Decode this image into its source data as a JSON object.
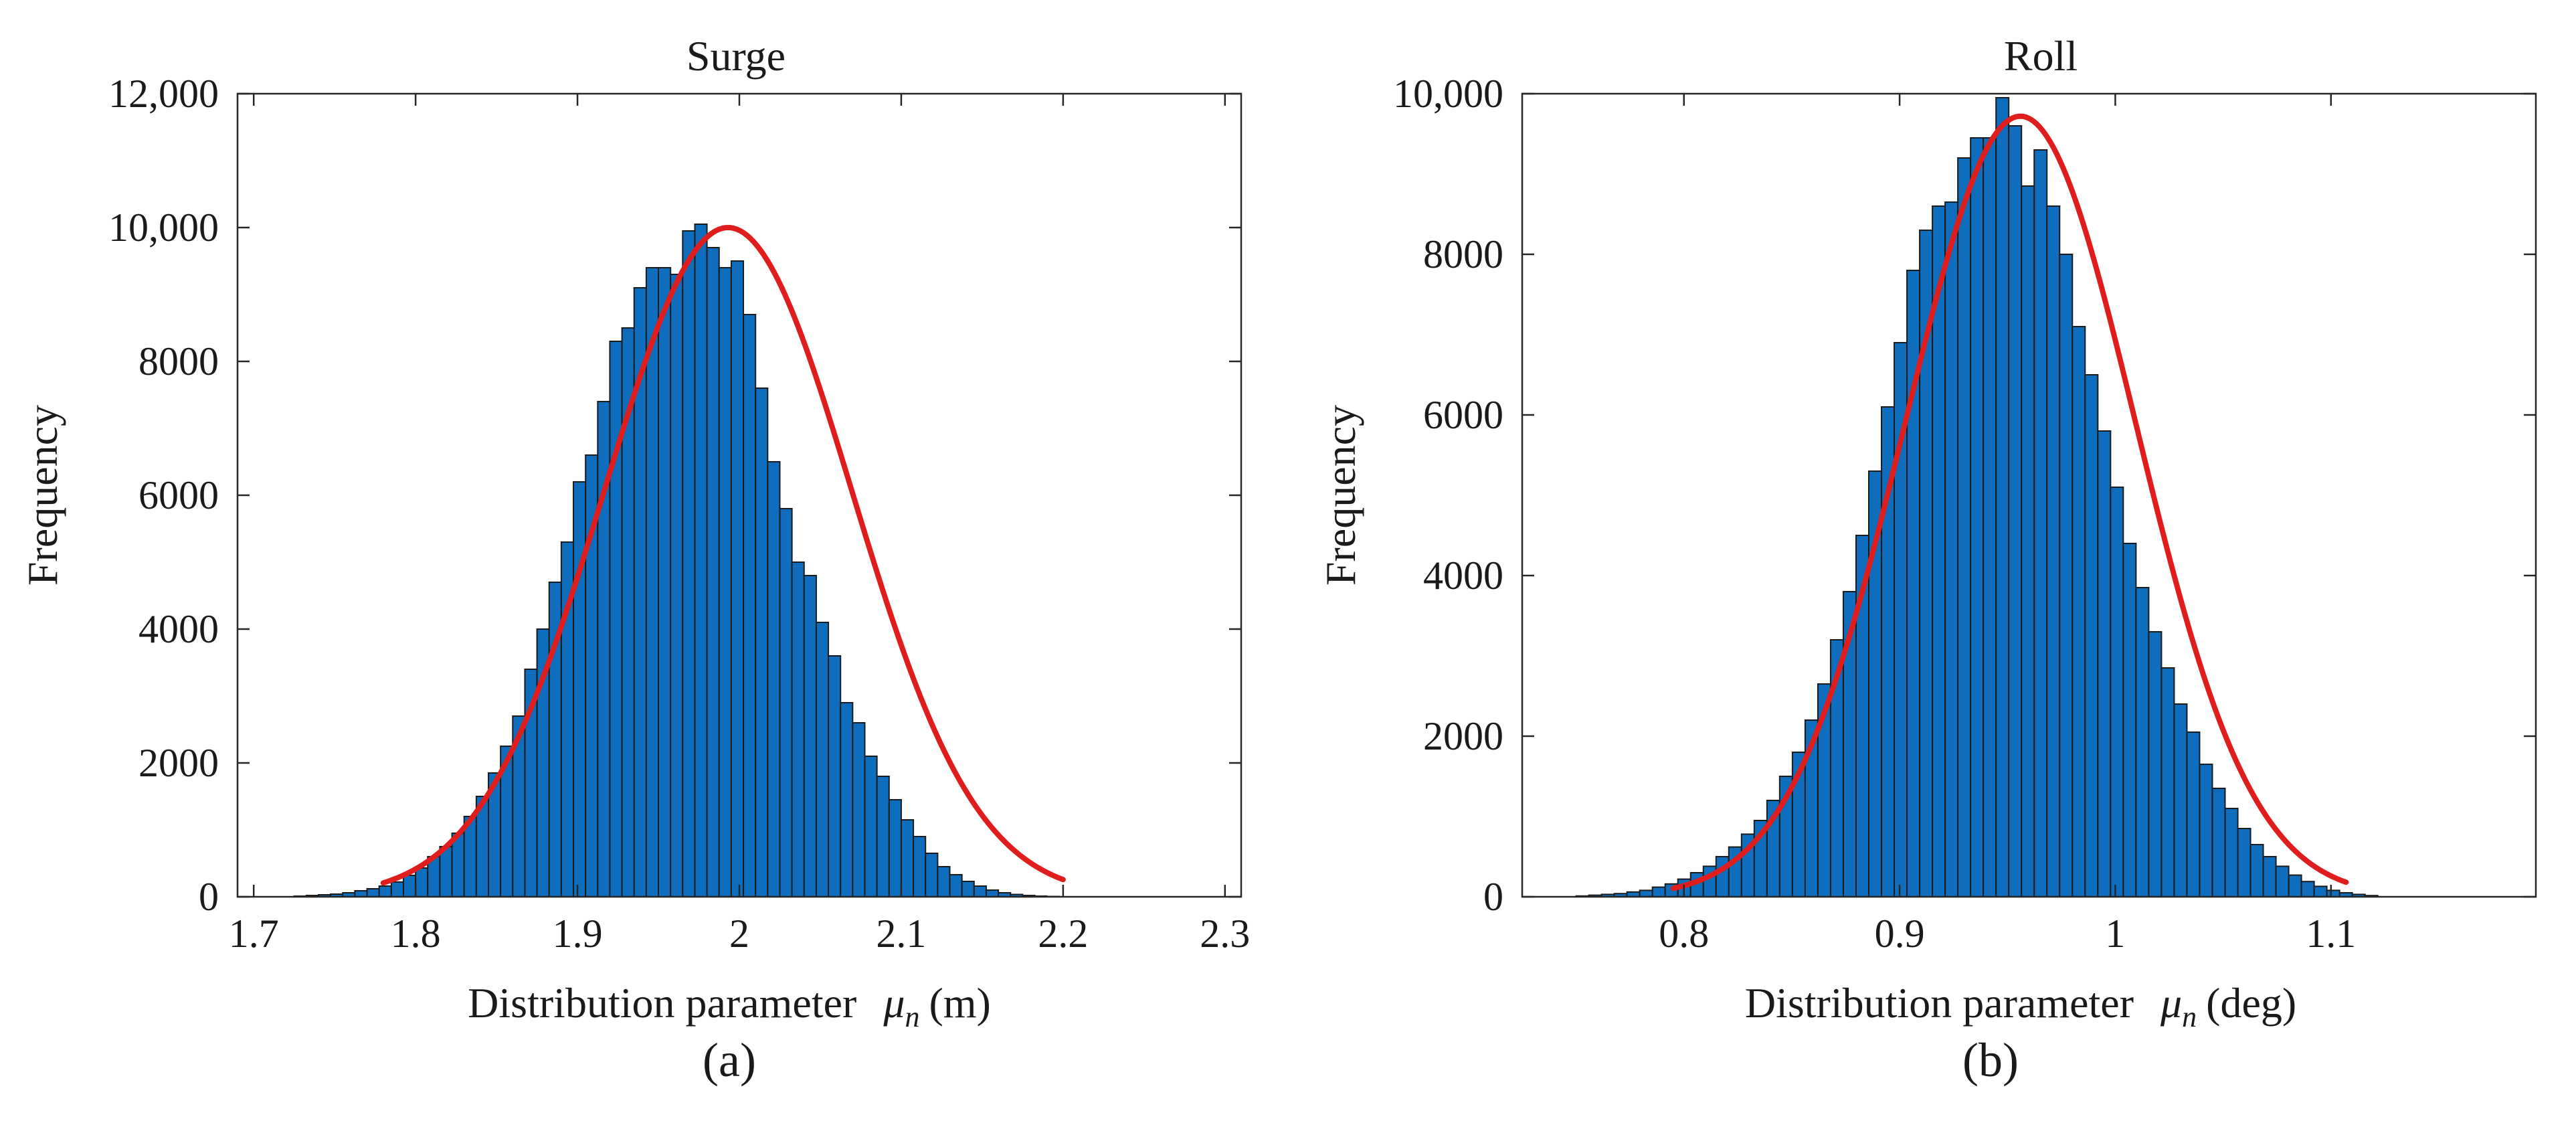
{
  "colors": {
    "bar": "#0f6dbd",
    "fit": "#e01d1d",
    "axis": "#262626"
  },
  "panels": [
    {
      "panel_label": "(a)",
      "xlabel_text": "Distribution parameter",
      "xlabel_symbol": "μ",
      "xlabel_subscript": "n",
      "xlabel_unit": "(m)"
    },
    {
      "panel_label": "(b)",
      "xlabel_text": "Distribution parameter",
      "xlabel_symbol": "μ",
      "xlabel_subscript": "n",
      "xlabel_unit": "(deg)"
    }
  ],
  "chart_data": [
    {
      "type": "bar",
      "title": "Surge",
      "xlabel": "Distribution parameter μn (m)",
      "ylabel": "Frequency",
      "xlim": [
        1.69,
        2.31
      ],
      "ylim": [
        0,
        12000
      ],
      "xticks": [
        1.7,
        1.8,
        1.9,
        2,
        2.1,
        2.2,
        2.3
      ],
      "xtick_labels": [
        "1.7",
        "1.8",
        "1.9",
        "2",
        "2.1",
        "2.2",
        "2.3"
      ],
      "yticks": [
        0,
        2000,
        4000,
        6000,
        8000,
        10000,
        12000
      ],
      "ytick_labels": [
        "0",
        "2000",
        "4000",
        "6000",
        "8000",
        "10,000",
        "12,000"
      ],
      "bin_start": 1.725,
      "bin_width": 0.0075,
      "values": [
        10,
        20,
        30,
        40,
        60,
        90,
        120,
        160,
        220,
        320,
        430,
        600,
        750,
        950,
        1200,
        1500,
        1850,
        2250,
        2700,
        3400,
        4000,
        4700,
        5300,
        6200,
        6600,
        7400,
        8300,
        8500,
        9100,
        9400,
        9400,
        9300,
        9950,
        10050,
        9700,
        9400,
        9500,
        8700,
        7600,
        6500,
        5800,
        5000,
        4800,
        4100,
        3600,
        2900,
        2600,
        2100,
        1800,
        1450,
        1150,
        900,
        650,
        450,
        330,
        230,
        160,
        100,
        60,
        35,
        20,
        10,
        5
      ],
      "fit": {
        "type": "normal",
        "mean": 1.993,
        "sd": 0.0765,
        "peak": 10000,
        "x_range": [
          1.78,
          2.2
        ]
      }
    },
    {
      "type": "bar",
      "title": "Roll",
      "xlabel": "Distribution parameter μn (deg)",
      "ylabel": "Frequency",
      "xlim": [
        0.725,
        1.195
      ],
      "ylim": [
        0,
        10000
      ],
      "xticks": [
        0.8,
        0.9,
        1,
        1.1
      ],
      "xtick_labels": [
        "0.8",
        "0.9",
        "1",
        "1.1"
      ],
      "yticks": [
        0,
        2000,
        4000,
        6000,
        8000,
        10000
      ],
      "ytick_labels": [
        "0",
        "2000",
        "4000",
        "6000",
        "8000",
        "10,000"
      ],
      "bin_start": 0.75,
      "bin_width": 0.0059,
      "values": [
        10,
        20,
        30,
        40,
        60,
        80,
        120,
        160,
        220,
        300,
        380,
        500,
        620,
        780,
        950,
        1200,
        1500,
        1800,
        2200,
        2650,
        3200,
        3800,
        4500,
        5300,
        6100,
        6900,
        7800,
        8300,
        8600,
        8650,
        9200,
        9450,
        9450,
        9950,
        9600,
        8850,
        9300,
        8600,
        8000,
        7100,
        6500,
        5800,
        5100,
        4400,
        3850,
        3300,
        2850,
        2400,
        2050,
        1650,
        1350,
        1100,
        850,
        650,
        500,
        380,
        270,
        190,
        130,
        80,
        50,
        30,
        15
      ],
      "fit": {
        "type": "normal",
        "mean": 0.956,
        "sd": 0.0535,
        "peak": 9720,
        "x_range": [
          0.795,
          1.107
        ]
      }
    }
  ]
}
